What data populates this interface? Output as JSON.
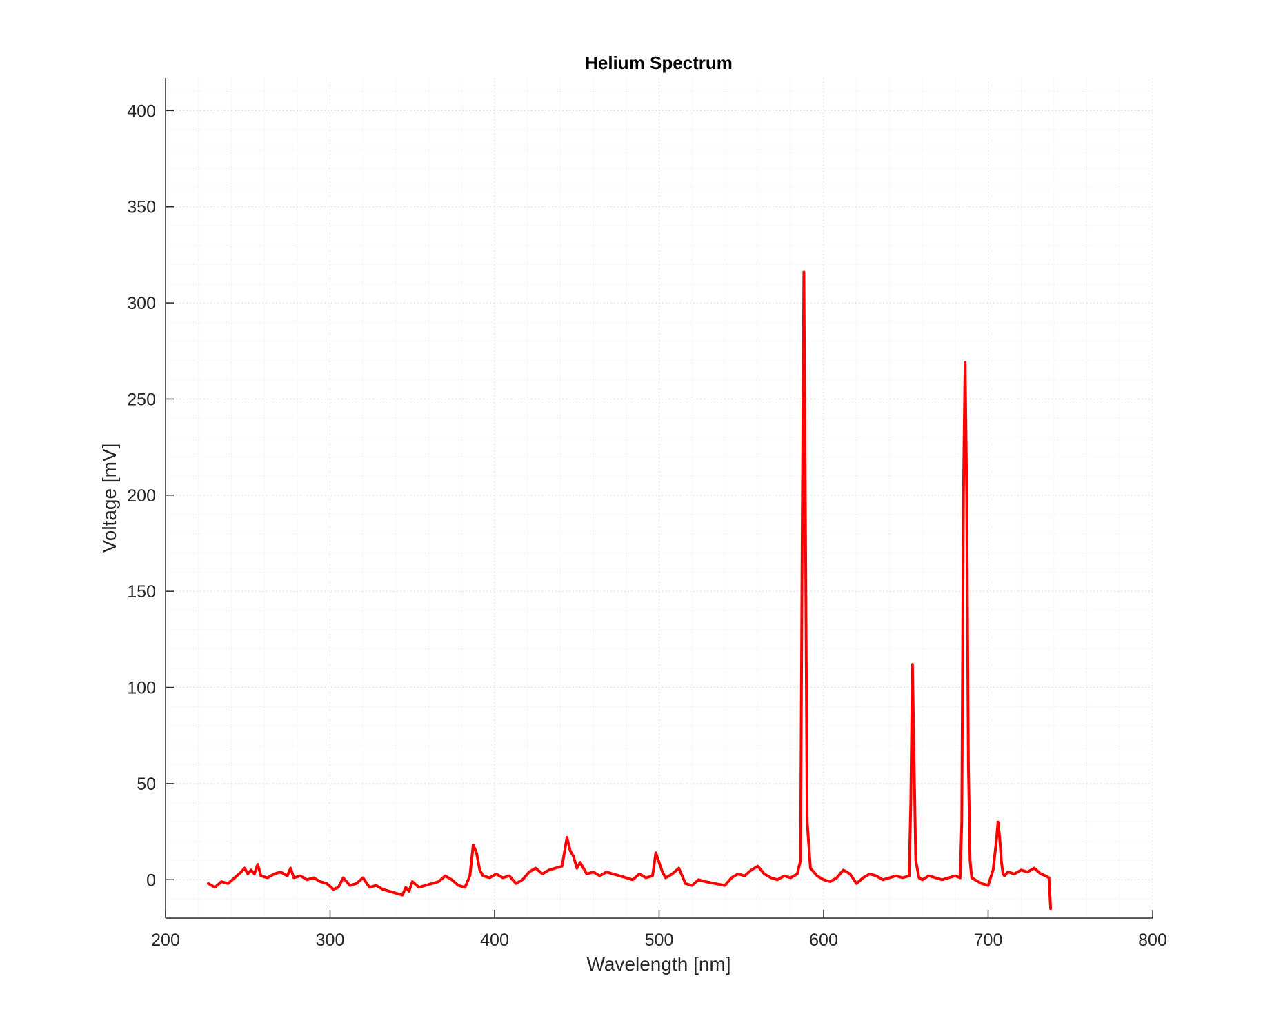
{
  "chart_data": {
    "type": "line",
    "title": "Helium Spectrum",
    "xlabel": "Wavelength [nm]",
    "ylabel": "Voltage [mV]",
    "xlim": [
      200,
      800
    ],
    "ylim": [
      -20,
      417
    ],
    "xticks": [
      200,
      300,
      400,
      500,
      600,
      700,
      800
    ],
    "yticks": [
      0,
      50,
      100,
      150,
      200,
      250,
      300,
      350,
      400
    ],
    "xtick_labels": [
      "200",
      "300",
      "400",
      "500",
      "600",
      "700",
      "800"
    ],
    "ytick_labels": [
      "0",
      "50",
      "100",
      "150",
      "200",
      "250",
      "300",
      "350",
      "400"
    ],
    "grid": true,
    "minor_grid": true,
    "series": [
      {
        "color": "#ff0000",
        "x": [
          226,
          230,
          234,
          238,
          242,
          246,
          248,
          250,
          252,
          254,
          256,
          258,
          262,
          266,
          270,
          274,
          276,
          278,
          282,
          286,
          290,
          294,
          298,
          302,
          305,
          308,
          312,
          316,
          320,
          324,
          328,
          332,
          336,
          340,
          344,
          346,
          348,
          350,
          354,
          358,
          362,
          366,
          370,
          374,
          378,
          382,
          385,
          387,
          389,
          391,
          393,
          397,
          401,
          405,
          409,
          413,
          417,
          421,
          425,
          429,
          433,
          437,
          441,
          444,
          446,
          448,
          450,
          452,
          456,
          460,
          464,
          468,
          472,
          476,
          480,
          484,
          488,
          492,
          496,
          498,
          500,
          502,
          504,
          508,
          512,
          516,
          520,
          524,
          528,
          534,
          540,
          544,
          548,
          552,
          556,
          560,
          564,
          568,
          572,
          576,
          580,
          584,
          586,
          587,
          588,
          589,
          590,
          592,
          596,
          600,
          604,
          608,
          612,
          616,
          620,
          624,
          628,
          632,
          636,
          640,
          644,
          648,
          652,
          653,
          654,
          655,
          656,
          658,
          660,
          664,
          668,
          672,
          676,
          680,
          683,
          684,
          685,
          686,
          687,
          688,
          689,
          690,
          692,
          696,
          700,
          703,
          705,
          706,
          707,
          708,
          709,
          710,
          712,
          716,
          720,
          724,
          728,
          732,
          735,
          737,
          738
        ],
        "y": [
          -2,
          -4,
          -1,
          -2,
          1,
          4,
          6,
          3,
          5,
          3,
          8,
          2,
          1,
          3,
          4,
          2,
          6,
          1,
          2,
          0,
          1,
          -1,
          -2,
          -5,
          -4,
          1,
          -3,
          -2,
          1,
          -4,
          -3,
          -5,
          -6,
          -7,
          -8,
          -4,
          -6,
          -1,
          -4,
          -3,
          -2,
          -1,
          2,
          0,
          -3,
          -4,
          2,
          18,
          14,
          5,
          2,
          1,
          3,
          1,
          2,
          -2,
          0,
          4,
          6,
          3,
          5,
          6,
          7,
          22,
          15,
          12,
          6,
          9,
          3,
          4,
          2,
          4,
          3,
          2,
          1,
          0,
          3,
          1,
          2,
          14,
          9,
          4,
          1,
          3,
          6,
          -2,
          -3,
          0,
          -1,
          -2,
          -3,
          1,
          3,
          2,
          5,
          7,
          3,
          1,
          0,
          2,
          1,
          3,
          10,
          180,
          316,
          180,
          30,
          6,
          2,
          0,
          -1,
          1,
          5,
          3,
          -2,
          1,
          3,
          2,
          0,
          1,
          2,
          1,
          2,
          40,
          112,
          60,
          10,
          1,
          0,
          2,
          1,
          0,
          1,
          2,
          1,
          30,
          200,
          269,
          200,
          60,
          10,
          1,
          0,
          -2,
          -3,
          5,
          20,
          30,
          22,
          10,
          3,
          2,
          4,
          3,
          5,
          4,
          6,
          3,
          2,
          1,
          -15
        ]
      }
    ]
  }
}
